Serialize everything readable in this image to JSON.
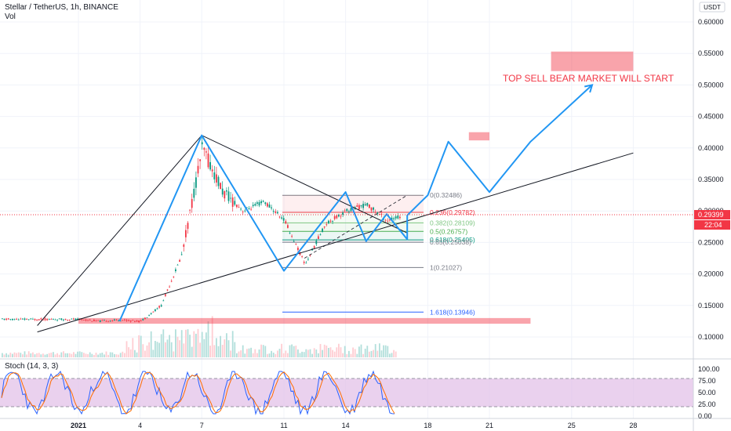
{
  "header": {
    "title": "Stellar / TetherUS, 1h, BINANCE",
    "volume_label": "Vol",
    "currency": "USDT"
  },
  "price_axis": {
    "ticks": [
      "0.60000",
      "0.55000",
      "0.50000",
      "0.45000",
      "0.40000",
      "0.35000",
      "0.30000",
      "0.25000",
      "0.20000",
      "0.15000",
      "0.10000"
    ],
    "last_price": "0.29399",
    "countdown": "22:04",
    "colors": {
      "last_price_bg": "#f23645",
      "countdown_bg": "#f23645"
    }
  },
  "stoch_axis": {
    "ticks": [
      "100.00",
      "75.00",
      "50.00",
      "25.00",
      "0.00"
    ]
  },
  "time_axis": {
    "ticks": [
      "2021",
      "4",
      "7",
      "11",
      "14",
      "18",
      "21",
      "25",
      "28"
    ]
  },
  "stoch_label": "Stoch (14, 3, 3)",
  "annotation": {
    "text": "TOP SELL BEAR MARKET WILL START",
    "color": "#f23645"
  },
  "fib_levels": [
    {
      "label": "0(0.32486)",
      "value": 0.32486,
      "color": "#787b86"
    },
    {
      "label": "0.236(0.29782)",
      "value": 0.29782,
      "color": "#f23645"
    },
    {
      "label": "0.382(0.28109)",
      "value": 0.28109,
      "color": "#81c784"
    },
    {
      "label": "0.5(0.26757)",
      "value": 0.26757,
      "color": "#4caf50"
    },
    {
      "label": "0.618(0.25405)",
      "value": 0.25405,
      "color": "#089981"
    },
    {
      "label": "0.65(0.25038)",
      "value": 0.25038,
      "color": "#787b86"
    },
    {
      "label": "1(0.21027)",
      "value": 0.21027,
      "color": "#787b86"
    },
    {
      "label": "1.618(0.13946)",
      "value": 0.13946,
      "color": "#2962ff"
    }
  ],
  "chart_data": {
    "type": "line",
    "title": "Stellar / TetherUS, 1h, BINANCE",
    "xlabel": "",
    "ylabel": "",
    "ylim": [
      0.08,
      0.62
    ],
    "x_ticks": [
      "2021",
      "4",
      "7",
      "11",
      "14",
      "18",
      "21",
      "25",
      "28"
    ],
    "price_series": {
      "name": "",
      "x": [
        "2021-01-01",
        "2021-01-02",
        "2021-01-03",
        "2021-01-04",
        "2021-01-05",
        "2021-01-06",
        "2021-01-07",
        "2021-01-08",
        "2021-01-09",
        "2021-01-10",
        "2021-01-11",
        "2021-01-12",
        "2021-01-13",
        "2021-01-14",
        "2021-01-15",
        "2021-01-16",
        "2021-01-17"
      ],
      "values": [
        0.128,
        0.125,
        0.127,
        0.125,
        0.15,
        0.23,
        0.4,
        0.33,
        0.3,
        0.315,
        0.285,
        0.215,
        0.28,
        0.3,
        0.31,
        0.285,
        0.294
      ]
    },
    "projection_path": {
      "x": [
        "2021-01-03",
        "2021-01-07",
        "2021-01-11",
        "2021-01-14",
        "2021-01-15",
        "2021-01-16",
        "2021-01-17",
        "2021-01-17",
        "2021-01-18",
        "2021-01-19",
        "2021-01-21",
        "2021-01-23",
        "2021-01-26"
      ],
      "values": [
        0.125,
        0.42,
        0.205,
        0.33,
        0.252,
        0.295,
        0.255,
        0.293,
        0.325,
        0.41,
        0.33,
        0.41,
        0.5
      ]
    },
    "trendlines": [
      {
        "x": [
          "2020-12-30",
          "2021-01-07",
          "2021-01-17"
        ],
        "values": [
          0.118,
          0.42,
          0.265
        ]
      },
      {
        "x": [
          "2020-12-30",
          "2021-01-28"
        ],
        "values": [
          0.108,
          0.392
        ]
      }
    ],
    "zones": [
      {
        "x": [
          "2021-01-24",
          "2021-01-28"
        ],
        "values": [
          0.522,
          0.553
        ]
      },
      {
        "x": [
          "2021-01-20",
          "2021-01-21"
        ],
        "values": [
          0.412,
          0.425
        ]
      },
      {
        "x": [
          "2021-01-01",
          "2021-01-23"
        ],
        "values": [
          0.121,
          0.13
        ]
      }
    ],
    "stoch": {
      "ylim": [
        0,
        100
      ],
      "bands": [
        20,
        80
      ]
    }
  }
}
